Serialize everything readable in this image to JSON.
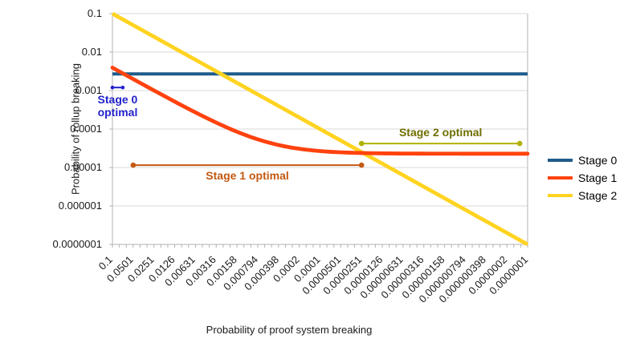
{
  "chart": {
    "x_axis_title": "Probability of proof system breaking",
    "y_axis_title": "Probability of rollup breaking"
  },
  "chart_data": {
    "type": "line",
    "x_scale": "log",
    "y_scale": "log",
    "x_range": [
      0.1,
      1e-07
    ],
    "y_range": [
      0.1,
      1e-07
    ],
    "grid": "horizontal-only",
    "legend_position": "right",
    "x_tick_labels": [
      "0.1",
      "0.0501",
      "0.0251",
      "0.0126",
      "0.00631",
      "0.00316",
      "0.00158",
      "0.000794",
      "0.000398",
      "0.0002",
      "0.0001",
      "0.0000501",
      "0.0000251",
      "0.0000126",
      "0.00000631",
      "0.00000316",
      "0.00000158",
      "0.000000794",
      "0.000000398",
      "0.0000002",
      "0.0000001"
    ],
    "y_tick_labels": [
      "0.1",
      "0.01",
      "0.001",
      "0.0001",
      "0.00001",
      "0.000001",
      "0.0000001"
    ],
    "series": [
      {
        "name": "Stage 0",
        "color": "#1F5C8B",
        "kind": "constant",
        "y": 0.0027
      },
      {
        "name": "Stage 1",
        "color": "#FF420E",
        "kind": "curve",
        "formula": "y = 0.0392*x + 0.0000228",
        "slope": 0.0392,
        "floor": 2.28e-05
      },
      {
        "name": "Stage 2",
        "color": "#FFD320",
        "kind": "identity",
        "formula": "y = x"
      }
    ],
    "annotations": [
      {
        "id": "stage0-optimal",
        "label": "Stage 0 optimal",
        "label_lines": [
          "Stage 0",
          "optimal"
        ],
        "color": "#2222CC",
        "y": 0.0012,
        "x_start": 0.1,
        "x_end": 0.0708,
        "label_position": "below"
      },
      {
        "id": "stage1-optimal",
        "label": "Stage 1 optimal",
        "color": "#C45911",
        "y": 1.15e-05,
        "x_start": 0.0501,
        "x_end": 2.51e-05,
        "label_position": "below"
      },
      {
        "id": "stage2-optimal",
        "label": "Stage 2 optimal",
        "color": "#AFB200",
        "text_color": "#6F6F00",
        "y": 4.2e-05,
        "x_start": 2.51e-05,
        "x_end": 1.3e-07,
        "label_position": "above"
      }
    ]
  }
}
